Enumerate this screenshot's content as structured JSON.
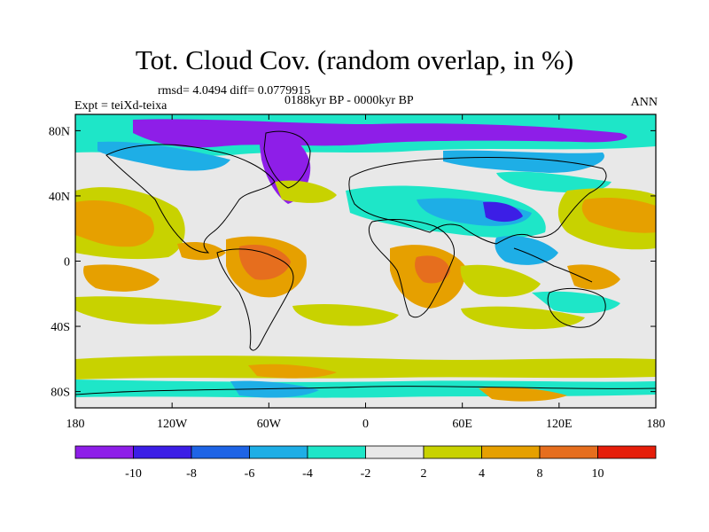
{
  "title": "Tot. Cloud Cov. (random overlap, in %)",
  "stats": "rmsd= 4.0494 diff= 0.0779915",
  "period": "0188kyr BP - 0000kyr BP",
  "experiment": "Expt = teiXd-teixa",
  "season": "ANN",
  "map": {
    "lon_ticks": [
      "180",
      "120W",
      "60W",
      "0",
      "60E",
      "120E",
      "180"
    ],
    "lat_ticks": [
      "80N",
      "40N",
      "0",
      "40S",
      "80S"
    ],
    "lon_tick_values": [
      -180,
      -120,
      -60,
      0,
      60,
      120,
      180
    ],
    "lat_tick_values": [
      80,
      40,
      0,
      -40,
      -80
    ],
    "lat_range": [
      -90,
      90
    ],
    "lon_range": [
      -180,
      180
    ]
  },
  "colorbar": {
    "labels": [
      "-10",
      "-8",
      "-6",
      "-4",
      "-2",
      "2",
      "4",
      "8",
      "10"
    ],
    "colors": [
      "#8e1ee8",
      "#3c1ee6",
      "#1e64e6",
      "#1eaee6",
      "#1ee6c8",
      "#e8e8e8",
      "#c8d200",
      "#e6a000",
      "#e66e1e",
      "#e61e0a"
    ]
  }
}
